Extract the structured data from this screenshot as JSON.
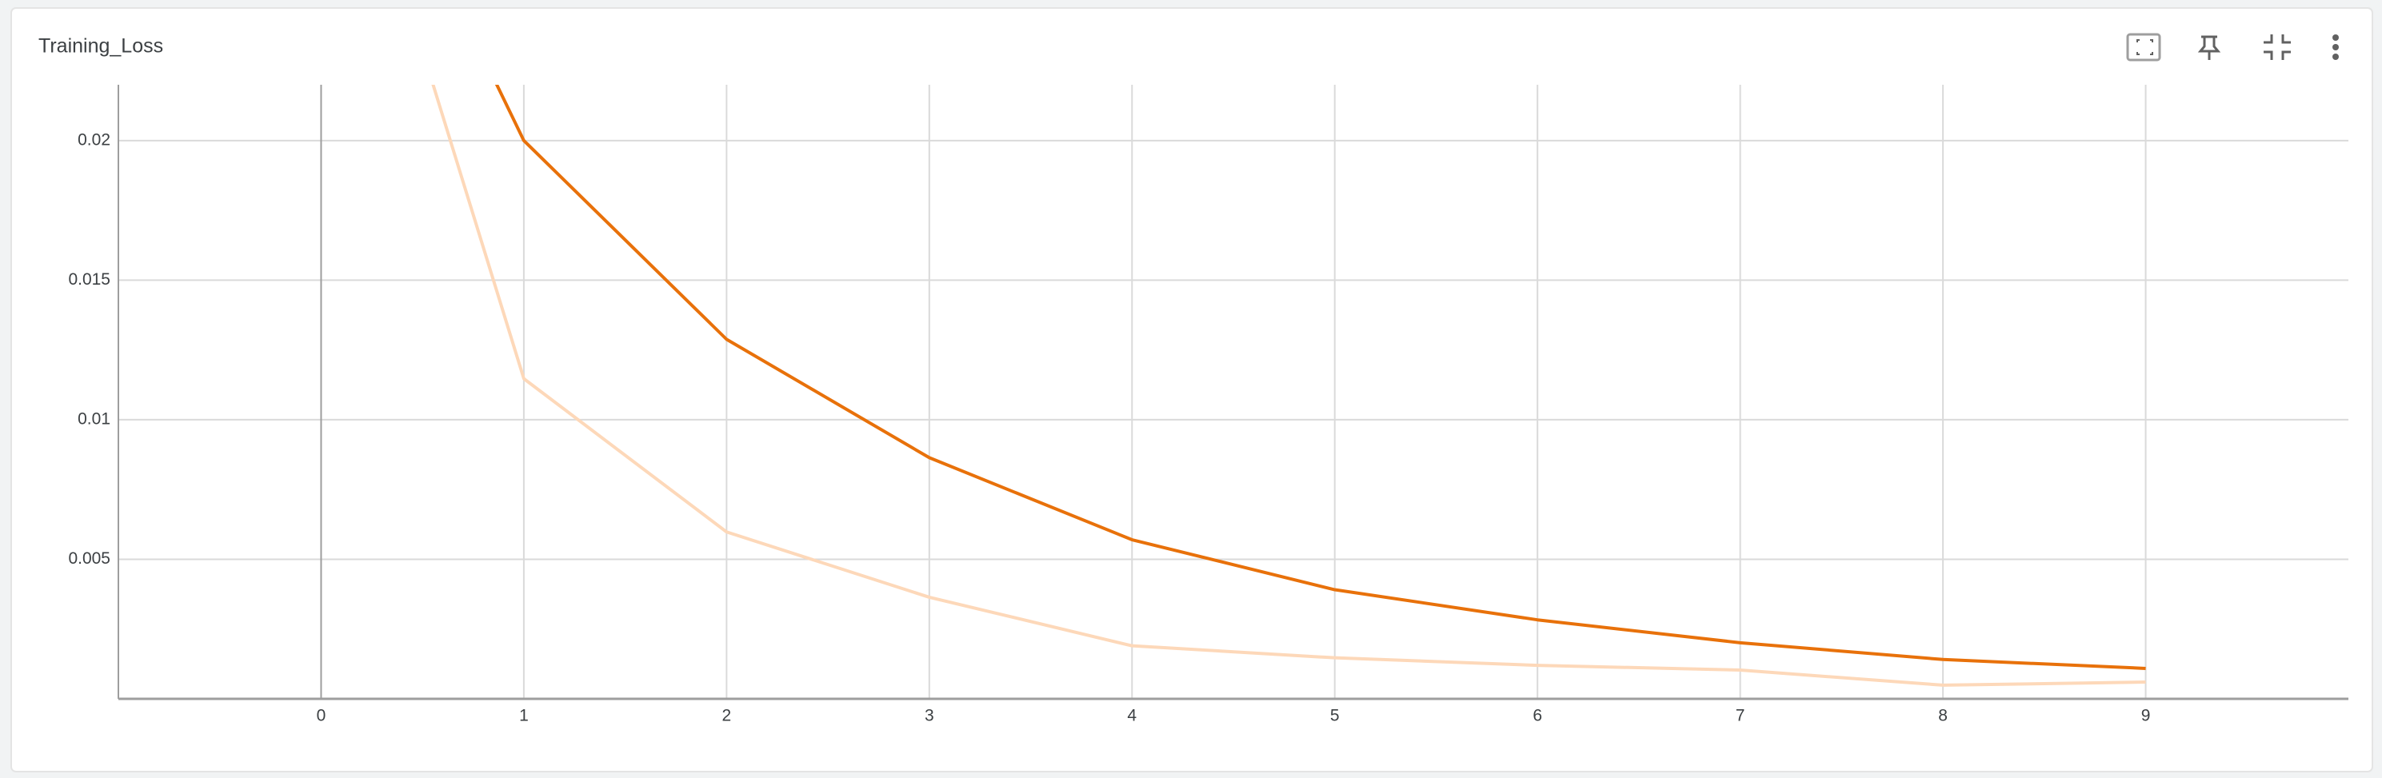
{
  "chart_data": {
    "type": "line",
    "title": "Training_Loss",
    "x": [
      0,
      1,
      2,
      3,
      4,
      5,
      6,
      7,
      8,
      9
    ],
    "series": [
      {
        "color": "#fdd8b9",
        "values": [
          0.035,
          0.01147,
          0.00598,
          0.00364,
          0.0019,
          0.00147,
          0.0012,
          0.00103,
          0.00049,
          0.0006
        ]
      },
      {
        "color": "#e8710a",
        "values": [
          0.035,
          0.02,
          0.01288,
          0.00864,
          0.0057,
          0.00391,
          0.00283,
          0.00201,
          0.00141,
          0.00109
        ]
      }
    ],
    "xlim": [
      -1,
      10
    ],
    "xticks": [
      0,
      1,
      2,
      3,
      4,
      5,
      6,
      7,
      8,
      9
    ],
    "ylim": [
      0,
      0.022
    ],
    "yticks": [
      0.005,
      0.01,
      0.015,
      0.02
    ],
    "grid": true
  }
}
